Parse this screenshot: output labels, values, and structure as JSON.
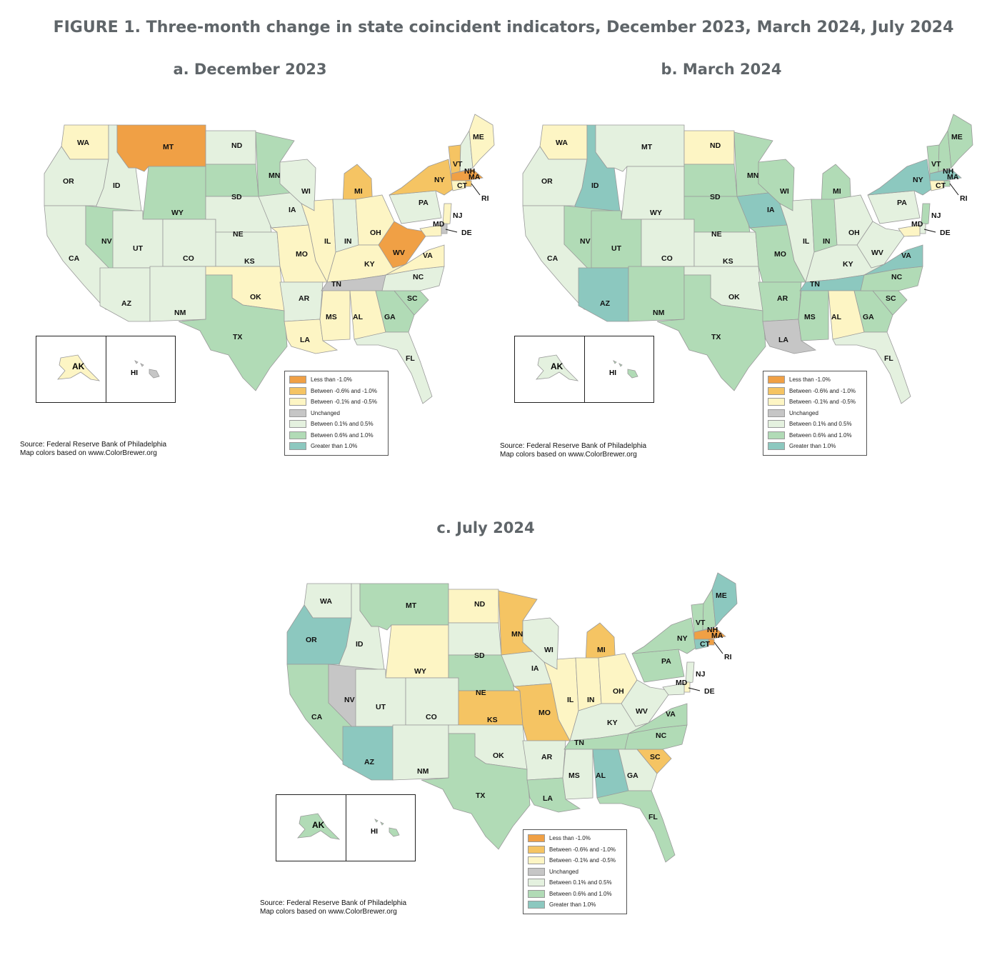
{
  "title": "FIGURE 1. Three-month change in state coincident indicators, December 2023, March 2024, July 2024",
  "categories": {
    "lt_neg1": {
      "label": "Less than -1.0%",
      "color": "#f0a045"
    },
    "neg06_neg1": {
      "label": "Between -0.6% and -1.0%",
      "color": "#f5c463"
    },
    "neg01_neg05": {
      "label": "Between -0.1% and -0.5%",
      "color": "#fdf5c4"
    },
    "unchanged": {
      "label": "Unchanged",
      "color": "#c6c6c6"
    },
    "pos01_05": {
      "label": "Between 0.1% and 0.5%",
      "color": "#e4f1df"
    },
    "pos06_10": {
      "label": "Between 0.6% and 1.0%",
      "color": "#b1dbb6"
    },
    "gt1": {
      "label": "Greater than 1.0%",
      "color": "#8cc8bf"
    }
  },
  "legend_order": [
    "lt_neg1",
    "neg06_neg1",
    "neg01_neg05",
    "unchanged",
    "pos01_05",
    "pos06_10",
    "gt1"
  ],
  "source_line1": "Source: Federal Reserve Bank of Philadelphia",
  "source_line2": "Map colors based on www.ColorBrewer.org",
  "panels": [
    {
      "title": "a. December 2023",
      "states": {
        "WA": "neg01_neg05",
        "OR": "pos01_05",
        "CA": "pos01_05",
        "ID": "pos01_05",
        "NV": "pos06_10",
        "MT": "lt_neg1",
        "WY": "pos06_10",
        "UT": "pos01_05",
        "AZ": "pos01_05",
        "CO": "pos01_05",
        "NM": "pos01_05",
        "ND": "pos01_05",
        "SD": "pos06_10",
        "NE": "pos01_05",
        "KS": "pos01_05",
        "OK": "neg01_neg05",
        "TX": "pos06_10",
        "MN": "pos06_10",
        "IA": "pos01_05",
        "MO": "neg01_neg05",
        "AR": "pos01_05",
        "LA": "neg01_neg05",
        "WI": "pos01_05",
        "IL": "neg01_neg05",
        "MI": "neg06_neg1",
        "IN": "pos01_05",
        "OH": "neg01_neg05",
        "KY": "neg01_neg05",
        "TN": "unchanged",
        "MS": "neg01_neg05",
        "AL": "neg01_neg05",
        "GA": "pos06_10",
        "FL": "pos01_05",
        "SC": "pos06_10",
        "NC": "pos01_05",
        "VA": "neg01_neg05",
        "WV": "lt_neg1",
        "PA": "pos01_05",
        "NY": "neg06_neg1",
        "VT": "neg06_neg1",
        "NH": "pos01_05",
        "ME": "neg01_neg05",
        "MA": "lt_neg1",
        "RI": "neg06_neg1",
        "CT": "neg01_neg05",
        "NJ": "neg01_neg05",
        "DE": "unchanged",
        "MD": "neg01_neg05",
        "AK": "neg01_neg05",
        "HI": "unchanged"
      }
    },
    {
      "title": "b. March 2024",
      "states": {
        "WA": "neg01_neg05",
        "OR": "pos01_05",
        "CA": "pos01_05",
        "ID": "gt1",
        "NV": "pos06_10",
        "MT": "pos01_05",
        "WY": "pos01_05",
        "UT": "pos06_10",
        "AZ": "gt1",
        "CO": "pos01_05",
        "NM": "pos06_10",
        "ND": "neg01_neg05",
        "SD": "pos06_10",
        "NE": "pos06_10",
        "KS": "pos01_05",
        "OK": "pos01_05",
        "TX": "pos06_10",
        "MN": "pos06_10",
        "IA": "gt1",
        "MO": "pos06_10",
        "AR": "pos06_10",
        "LA": "unchanged",
        "WI": "pos06_10",
        "IL": "pos01_05",
        "MI": "pos06_10",
        "IN": "pos06_10",
        "OH": "pos01_05",
        "KY": "pos01_05",
        "TN": "gt1",
        "MS": "pos06_10",
        "AL": "neg01_neg05",
        "GA": "pos06_10",
        "FL": "pos01_05",
        "SC": "pos06_10",
        "NC": "pos06_10",
        "VA": "gt1",
        "WV": "pos01_05",
        "PA": "pos01_05",
        "NY": "gt1",
        "VT": "pos06_10",
        "NH": "pos06_10",
        "ME": "pos06_10",
        "MA": "gt1",
        "RI": "pos06_10",
        "CT": "neg01_neg05",
        "NJ": "pos06_10",
        "DE": "pos01_05",
        "MD": "neg01_neg05",
        "AK": "pos01_05",
        "HI": "pos06_10"
      }
    },
    {
      "title": "c. July 2024",
      "states": {
        "WA": "pos01_05",
        "OR": "gt1",
        "CA": "pos06_10",
        "ID": "pos01_05",
        "NV": "unchanged",
        "MT": "pos06_10",
        "WY": "neg01_neg05",
        "UT": "pos01_05",
        "AZ": "gt1",
        "CO": "pos01_05",
        "NM": "pos01_05",
        "ND": "neg01_neg05",
        "SD": "pos01_05",
        "NE": "pos06_10",
        "KS": "neg06_neg1",
        "OK": "pos01_05",
        "TX": "pos06_10",
        "MN": "neg06_neg1",
        "IA": "pos01_05",
        "MO": "neg06_neg1",
        "AR": "pos01_05",
        "LA": "pos06_10",
        "WI": "pos01_05",
        "IL": "neg01_neg05",
        "MI": "neg06_neg1",
        "IN": "neg01_neg05",
        "OH": "neg01_neg05",
        "KY": "pos01_05",
        "TN": "pos06_10",
        "MS": "pos01_05",
        "AL": "gt1",
        "GA": "pos01_05",
        "FL": "pos06_10",
        "SC": "neg06_neg1",
        "NC": "pos06_10",
        "VA": "pos06_10",
        "WV": "pos01_05",
        "PA": "pos06_10",
        "NY": "pos06_10",
        "VT": "pos06_10",
        "NH": "pos06_10",
        "ME": "gt1",
        "MA": "lt_neg1",
        "RI": "lt_neg1",
        "CT": "gt1",
        "NJ": "pos01_05",
        "DE": "neg01_neg05",
        "MD": "pos01_05",
        "AK": "pos06_10",
        "HI": "pos06_10"
      }
    }
  ]
}
